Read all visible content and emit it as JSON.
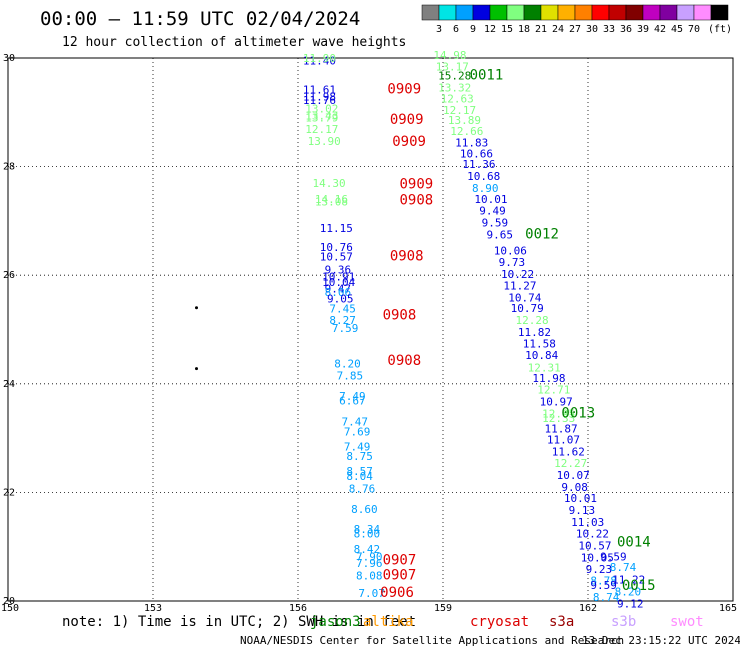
{
  "header": {
    "title": "00:00 – 11:59 UTC 02/04/2024",
    "subtitle": "12 hour collection of altimeter wave heights"
  },
  "colorbar": {
    "colors": [
      "#808080",
      "#00e5e5",
      "#00a0ff",
      "#0000e0",
      "#00c000",
      "#80ff80",
      "#008000",
      "#e0e000",
      "#ffb000",
      "#ff8000",
      "#ff0000",
      "#c00000",
      "#800000",
      "#c000c0",
      "#8000a0",
      "#c8a0ff",
      "#ff8cff",
      "#000000"
    ],
    "ticks": [
      "3",
      "6",
      "9",
      "12",
      "15",
      "18",
      "21",
      "24",
      "27",
      "30",
      "33",
      "36",
      "39",
      "42",
      "45",
      "70"
    ],
    "unit": "(ft)"
  },
  "note": {
    "text": "note: 1) Time is in UTC; 2) SWH is in feet",
    "satellites": [
      {
        "name": "jason3",
        "color": "#008000"
      },
      {
        "name": "altika",
        "color": "#ff9900"
      },
      {
        "name": "cryosat",
        "color": "#dd0000"
      },
      {
        "name": "s3a",
        "color": "#990000"
      },
      {
        "name": "s3b",
        "color": "#c8a0ff"
      },
      {
        "name": "swot",
        "color": "#ff8cff"
      }
    ]
  },
  "footer": {
    "source": "NOAA/NESDIS Center for Satellite Applications and Research",
    "timestamp": "13 Dec 23:15:22 UTC 2024"
  },
  "chart_data": {
    "type": "scatter",
    "title": "00:00 – 11:59 UTC 02/04/2024",
    "subtitle": "12 hour collection of altimeter wave heights",
    "xlim": [
      150,
      165
    ],
    "ylim": [
      20,
      30
    ],
    "xticks": [
      150,
      153,
      156,
      159,
      162,
      165
    ],
    "yticks": [
      20,
      22,
      24,
      26,
      28,
      30
    ],
    "grid": true,
    "x_tick_labels": [
      "150",
      "153",
      "156",
      "159",
      "162",
      "165"
    ],
    "y_tick_labels": [
      "20",
      "22",
      "24",
      "26",
      "28",
      "30"
    ],
    "points": [
      {
        "x": 156.1,
        "y": 29.88,
        "v": "11.40",
        "c": "#0000e0"
      },
      {
        "x": 156.1,
        "y": 29.93,
        "v": "11.90",
        "c": "#80ff80"
      },
      {
        "x": 156.1,
        "y": 29.35,
        "v": "11.61",
        "c": "#0000e0"
      },
      {
        "x": 156.1,
        "y": 29.22,
        "v": "11.98",
        "c": "#0000e0"
      },
      {
        "x": 156.1,
        "y": 29.15,
        "v": "11.76",
        "c": "#0000e0"
      },
      {
        "x": 156.15,
        "y": 29.0,
        "v": "13.02",
        "c": "#80ff80"
      },
      {
        "x": 156.15,
        "y": 28.87,
        "v": "13.43",
        "c": "#80ff80"
      },
      {
        "x": 156.15,
        "y": 28.83,
        "v": "13.79",
        "c": "#80ff80"
      },
      {
        "x": 156.15,
        "y": 28.62,
        "v": "12.17",
        "c": "#80ff80"
      },
      {
        "x": 156.2,
        "y": 28.4,
        "v": "13.90",
        "c": "#80ff80"
      },
      {
        "x": 156.3,
        "y": 27.62,
        "v": "14.30",
        "c": "#80ff80"
      },
      {
        "x": 156.35,
        "y": 27.33,
        "v": "14.16",
        "c": "#80ff80"
      },
      {
        "x": 156.35,
        "y": 27.28,
        "v": "13.08",
        "c": "#80ff80"
      },
      {
        "x": 156.45,
        "y": 26.8,
        "v": "11.15",
        "c": "#0000e0"
      },
      {
        "x": 156.45,
        "y": 26.45,
        "v": "10.76",
        "c": "#0000e0"
      },
      {
        "x": 156.45,
        "y": 26.27,
        "v": "10.57",
        "c": "#0000e0"
      },
      {
        "x": 156.55,
        "y": 26.03,
        "v": "9.36",
        "c": "#0000e0"
      },
      {
        "x": 156.5,
        "y": 25.9,
        "v": "10.91",
        "c": "#0000e0"
      },
      {
        "x": 156.5,
        "y": 25.8,
        "v": "10.04",
        "c": "#0000e0"
      },
      {
        "x": 156.55,
        "y": 25.68,
        "v": "9.47",
        "c": "#0000e0"
      },
      {
        "x": 156.55,
        "y": 25.62,
        "v": "8.06",
        "c": "#00a0ff"
      },
      {
        "x": 156.6,
        "y": 25.5,
        "v": "9.05",
        "c": "#0000e0"
      },
      {
        "x": 156.65,
        "y": 25.31,
        "v": "7.45",
        "c": "#00a0ff"
      },
      {
        "x": 156.65,
        "y": 25.1,
        "v": "8.27",
        "c": "#00a0ff"
      },
      {
        "x": 156.7,
        "y": 24.95,
        "v": "7.59",
        "c": "#00a0ff"
      },
      {
        "x": 156.75,
        "y": 24.3,
        "v": "8.20",
        "c": "#00a0ff"
      },
      {
        "x": 156.8,
        "y": 24.08,
        "v": "7.85",
        "c": "#00a0ff"
      },
      {
        "x": 156.85,
        "y": 23.7,
        "v": "7.49",
        "c": "#00a0ff"
      },
      {
        "x": 156.85,
        "y": 23.62,
        "v": "6.67",
        "c": "#00a0ff"
      },
      {
        "x": 156.9,
        "y": 23.23,
        "v": "7.47",
        "c": "#00a0ff"
      },
      {
        "x": 156.95,
        "y": 23.05,
        "v": "7.69",
        "c": "#00a0ff"
      },
      {
        "x": 156.95,
        "y": 22.77,
        "v": "7.49",
        "c": "#00a0ff"
      },
      {
        "x": 157.0,
        "y": 22.6,
        "v": "8.75",
        "c": "#00a0ff"
      },
      {
        "x": 157.0,
        "y": 22.32,
        "v": "8.57",
        "c": "#00a0ff"
      },
      {
        "x": 157.0,
        "y": 22.23,
        "v": "8.04",
        "c": "#00a0ff"
      },
      {
        "x": 157.05,
        "y": 22.0,
        "v": "8.76",
        "c": "#00a0ff"
      },
      {
        "x": 157.1,
        "y": 21.62,
        "v": "8.60",
        "c": "#00a0ff"
      },
      {
        "x": 157.15,
        "y": 21.25,
        "v": "8.34",
        "c": "#00a0ff"
      },
      {
        "x": 157.15,
        "y": 21.17,
        "v": "8.00",
        "c": "#00a0ff"
      },
      {
        "x": 157.15,
        "y": 20.88,
        "v": "8.42",
        "c": "#00a0ff"
      },
      {
        "x": 157.2,
        "y": 20.75,
        "v": "7.90",
        "c": "#00a0ff"
      },
      {
        "x": 157.2,
        "y": 20.63,
        "v": "7.96",
        "c": "#00a0ff"
      },
      {
        "x": 157.2,
        "y": 20.4,
        "v": "8.08",
        "c": "#00a0ff"
      },
      {
        "x": 157.25,
        "y": 20.07,
        "v": "7.07",
        "c": "#00a0ff"
      },
      {
        "x": 158.8,
        "y": 29.98,
        "v": "14.98",
        "c": "#80ff80"
      },
      {
        "x": 158.85,
        "y": 29.77,
        "v": "13.17",
        "c": "#80ff80"
      },
      {
        "x": 158.9,
        "y": 29.6,
        "v": "15.28",
        "c": "#008000"
      },
      {
        "x": 158.9,
        "y": 29.38,
        "v": "13.32",
        "c": "#80ff80"
      },
      {
        "x": 158.95,
        "y": 29.18,
        "v": "12.63",
        "c": "#80ff80"
      },
      {
        "x": 159.0,
        "y": 28.97,
        "v": "12.17",
        "c": "#80ff80"
      },
      {
        "x": 159.1,
        "y": 28.78,
        "v": "13.89",
        "c": "#80ff80"
      },
      {
        "x": 159.15,
        "y": 28.58,
        "v": "12.66",
        "c": "#80ff80"
      },
      {
        "x": 159.25,
        "y": 28.37,
        "v": "11.83",
        "c": "#0000e0"
      },
      {
        "x": 159.35,
        "y": 28.17,
        "v": "10.66",
        "c": "#0000e0"
      },
      {
        "x": 159.4,
        "y": 27.97,
        "v": "11.36",
        "c": "#0000e0"
      },
      {
        "x": 159.5,
        "y": 27.75,
        "v": "10.68",
        "c": "#0000e0"
      },
      {
        "x": 159.6,
        "y": 27.53,
        "v": "8.90",
        "c": "#00a0ff"
      },
      {
        "x": 159.65,
        "y": 27.33,
        "v": "10.01",
        "c": "#0000e0"
      },
      {
        "x": 159.75,
        "y": 27.12,
        "v": "9.49",
        "c": "#0000e0"
      },
      {
        "x": 159.8,
        "y": 26.9,
        "v": "9.59",
        "c": "#0000e0"
      },
      {
        "x": 159.9,
        "y": 26.68,
        "v": "9.65",
        "c": "#0000e0"
      },
      {
        "x": 160.05,
        "y": 26.38,
        "v": "10.06",
        "c": "#0000e0"
      },
      {
        "x": 160.15,
        "y": 26.17,
        "v": "9.73",
        "c": "#0000e0"
      },
      {
        "x": 160.2,
        "y": 25.95,
        "v": "10.22",
        "c": "#0000e0"
      },
      {
        "x": 160.25,
        "y": 25.74,
        "v": "11.27",
        "c": "#0000e0"
      },
      {
        "x": 160.35,
        "y": 25.52,
        "v": "10.74",
        "c": "#0000e0"
      },
      {
        "x": 160.4,
        "y": 25.32,
        "v": "10.79",
        "c": "#0000e0"
      },
      {
        "x": 160.5,
        "y": 25.1,
        "v": "12.28",
        "c": "#80ff80"
      },
      {
        "x": 160.55,
        "y": 24.88,
        "v": "11.82",
        "c": "#0000e0"
      },
      {
        "x": 160.65,
        "y": 24.67,
        "v": "11.58",
        "c": "#0000e0"
      },
      {
        "x": 160.7,
        "y": 24.46,
        "v": "10.84",
        "c": "#0000e0"
      },
      {
        "x": 160.75,
        "y": 24.23,
        "v": "12.31",
        "c": "#80ff80"
      },
      {
        "x": 160.85,
        "y": 24.03,
        "v": "11.98",
        "c": "#0000e0"
      },
      {
        "x": 160.95,
        "y": 23.82,
        "v": "12.71",
        "c": "#80ff80"
      },
      {
        "x": 161.0,
        "y": 23.6,
        "v": "10.97",
        "c": "#0000e0"
      },
      {
        "x": 161.05,
        "y": 23.38,
        "v": "12.85",
        "c": "#80ff80"
      },
      {
        "x": 161.05,
        "y": 23.3,
        "v": "12.33",
        "c": "#80ff80"
      },
      {
        "x": 161.1,
        "y": 23.1,
        "v": "11.87",
        "c": "#0000e0"
      },
      {
        "x": 161.15,
        "y": 22.9,
        "v": "11.07",
        "c": "#0000e0"
      },
      {
        "x": 161.25,
        "y": 22.68,
        "v": "11.62",
        "c": "#0000e0"
      },
      {
        "x": 161.3,
        "y": 22.47,
        "v": "12.27",
        "c": "#80ff80"
      },
      {
        "x": 161.35,
        "y": 22.25,
        "v": "10.07",
        "c": "#0000e0"
      },
      {
        "x": 161.45,
        "y": 22.03,
        "v": "9.08",
        "c": "#0000e0"
      },
      {
        "x": 161.5,
        "y": 21.82,
        "v": "10.01",
        "c": "#0000e0"
      },
      {
        "x": 161.6,
        "y": 21.6,
        "v": "9.13",
        "c": "#0000e0"
      },
      {
        "x": 161.65,
        "y": 21.38,
        "v": "11.03",
        "c": "#0000e0"
      },
      {
        "x": 161.75,
        "y": 21.17,
        "v": "10.22",
        "c": "#0000e0"
      },
      {
        "x": 161.8,
        "y": 20.95,
        "v": "10.57",
        "c": "#0000e0"
      },
      {
        "x": 161.85,
        "y": 20.73,
        "v": "10.05",
        "c": "#0000e0"
      },
      {
        "x": 161.95,
        "y": 20.52,
        "v": "9.23",
        "c": "#0000e0"
      },
      {
        "x": 162.05,
        "y": 20.3,
        "v": "8.78",
        "c": "#00a0ff"
      },
      {
        "x": 162.05,
        "y": 20.22,
        "v": "9.59",
        "c": "#0000e0"
      },
      {
        "x": 162.1,
        "y": 20.0,
        "v": "8.74",
        "c": "#00a0ff"
      }
    ],
    "time_labels": [
      {
        "x": 157.85,
        "y": 29.35,
        "v": "0909",
        "c": "#dd0000"
      },
      {
        "x": 157.9,
        "y": 28.78,
        "v": "0909",
        "c": "#dd0000"
      },
      {
        "x": 157.95,
        "y": 28.38,
        "v": "0909",
        "c": "#dd0000"
      },
      {
        "x": 158.1,
        "y": 27.6,
        "v": "0909",
        "c": "#dd0000"
      },
      {
        "x": 158.1,
        "y": 27.3,
        "v": "0908",
        "c": "#dd0000"
      },
      {
        "x": 157.9,
        "y": 26.27,
        "v": "0908",
        "c": "#dd0000"
      },
      {
        "x": 157.75,
        "y": 25.18,
        "v": "0908",
        "c": "#dd0000"
      },
      {
        "x": 157.85,
        "y": 24.35,
        "v": "0908",
        "c": "#dd0000"
      },
      {
        "x": 159.55,
        "y": 29.6,
        "v": "0011",
        "c": "#008000"
      },
      {
        "x": 160.7,
        "y": 26.68,
        "v": "0012",
        "c": "#008000"
      },
      {
        "x": 161.45,
        "y": 23.38,
        "v": "0013",
        "c": "#008000"
      },
      {
        "x": 162.6,
        "y": 21.0,
        "v": "0014",
        "c": "#008000"
      },
      {
        "x": 162.7,
        "y": 20.2,
        "v": "0015",
        "c": "#008000"
      },
      {
        "x": 157.75,
        "y": 20.67,
        "v": "0907",
        "c": "#dd0000"
      },
      {
        "x": 157.75,
        "y": 20.4,
        "v": "0907",
        "c": "#dd0000"
      },
      {
        "x": 157.7,
        "y": 20.07,
        "v": "0906",
        "c": "#dd0000"
      }
    ],
    "extra_points": [
      {
        "x": 162.25,
        "y": 20.75,
        "v": "9.59",
        "c": "#0000e0"
      },
      {
        "x": 162.45,
        "y": 20.55,
        "v": "8.74",
        "c": "#00a0ff"
      },
      {
        "x": 162.5,
        "y": 20.32,
        "v": "11.22",
        "c": "#0000e0"
      },
      {
        "x": 162.55,
        "y": 20.1,
        "v": "8.20",
        "c": "#00a0ff"
      },
      {
        "x": 162.6,
        "y": 19.88,
        "v": "9.12",
        "c": "#0000e0"
      }
    ],
    "dots": [
      {
        "x": 153.9,
        "y": 25.4
      },
      {
        "x": 153.9,
        "y": 24.28
      }
    ]
  }
}
